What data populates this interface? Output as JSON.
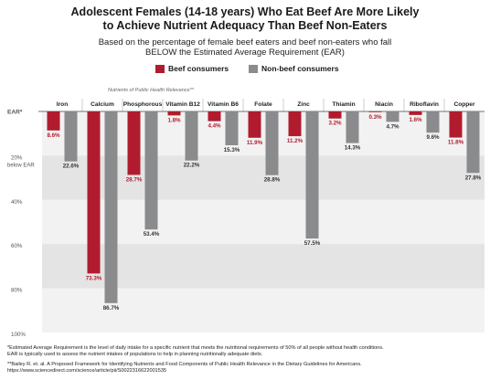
{
  "header": {
    "title_line1": "Adolescent Females (14-18 years) Who Eat Beef Are More Likely",
    "title_line2": "to Achieve Nutrient Adequacy Than Beef Non-Eaters",
    "subtitle_line1": "Based on the percentage of female beef eaters and beef non-eaters who fall",
    "subtitle_line2": "BELOW the Estimated Average Requirement (EAR)"
  },
  "legend": {
    "beef_label": "Beef consumers",
    "nonbeef_label": "Non-beef consumers"
  },
  "nutrients_note": "Nutrients of Public Health Relevance**",
  "colors": {
    "beef": "#b01c2e",
    "nonbeef": "#8a8b8d",
    "band_light": "#f2f2f2",
    "band_dark": "#e4e4e4"
  },
  "chart_data": {
    "type": "bar",
    "orientation": "downward",
    "categories": [
      "Iron",
      "Calcium",
      "Phosphorous",
      "Vitamin B12",
      "Vitamin B6",
      "Folate",
      "Zinc",
      "Thiamin",
      "Niacin",
      "Riboflavin",
      "Copper"
    ],
    "series": [
      {
        "name": "Beef consumers",
        "values": [
          8.6,
          73.3,
          28.7,
          1.8,
          4.4,
          11.9,
          11.2,
          3.2,
          0.3,
          1.6,
          11.8
        ],
        "labels": [
          "8.6%",
          "73.3%",
          "28.7%",
          "1.8%",
          "4.4%",
          "11.9%",
          "11.2%",
          "3.2%",
          "0.3%",
          "1.6%",
          "11.8%"
        ]
      },
      {
        "name": "Non-beef consumers",
        "values": [
          22.6,
          86.7,
          53.4,
          22.2,
          15.3,
          28.8,
          57.5,
          14.3,
          4.7,
          9.6,
          27.8
        ],
        "labels": [
          "22.6%",
          "86.7%",
          "53.4%",
          "22.2%",
          "15.3%",
          "28.8%",
          "57.5%",
          "14.3%",
          "4.7%",
          "9.6%",
          "27.8%"
        ]
      }
    ],
    "y_ticks": [
      "EAR*",
      "20%",
      "40%",
      "60%",
      "80%",
      "100%"
    ],
    "below_ear_label": "below EAR",
    "ylim": [
      0,
      100
    ]
  },
  "footer": {
    "line1": "*Estimated Average Requirement is the level of daily intake for a specific nutrient that meets the nutritional requirements of 50% of all people without health conditions.",
    "line2": "EAR is typically used to assess the nutrient intakes of populations to help in planning nutritionally adequate diets.",
    "line3": "**Bailey R. et. al. A Proposed Framework for Identifying Nutrients and Food Components of Public Health Relevance in the Dietary Guidelines for Americans.",
    "line4": "https://www.sciencedirect.com/science/article/pii/S0022316622001535"
  }
}
